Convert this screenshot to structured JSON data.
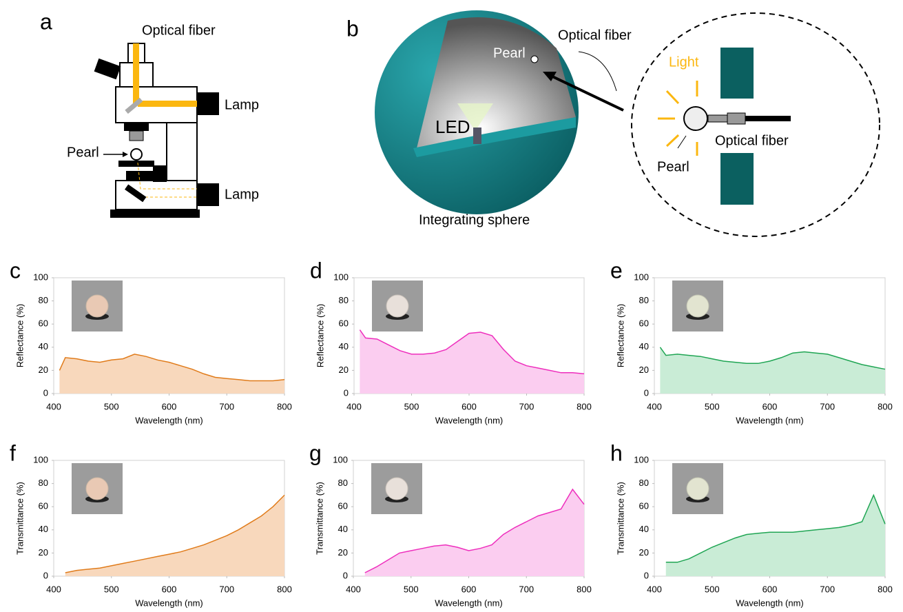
{
  "diagram_a": {
    "panel": "a",
    "labels": [
      "Optical fiber",
      "Lamp",
      "Pearl",
      "Lamp"
    ]
  },
  "diagram_b": {
    "panel": "b",
    "labels": [
      "Optical fiber",
      "Pearl",
      "LED",
      "Integrating sphere",
      "Light",
      "Optical fiber",
      "Pearl"
    ]
  },
  "chart_data": [
    {
      "type": "area",
      "panel": "c",
      "x_label": "Wavelength (nm)",
      "y_label": "Reflectance (%)",
      "color": "#e07b1a",
      "fill_color": "#f8d8bc",
      "xlim": [
        400,
        800
      ],
      "ylim": [
        0,
        100
      ],
      "xticks": [
        400,
        500,
        600,
        700,
        800
      ],
      "yticks": [
        0,
        20,
        40,
        60,
        80,
        100
      ],
      "x": [
        410,
        420,
        440,
        460,
        480,
        500,
        520,
        540,
        560,
        580,
        600,
        620,
        640,
        660,
        680,
        700,
        720,
        740,
        760,
        780,
        800
      ],
      "values": [
        20,
        31,
        30,
        28,
        27,
        29,
        30,
        34,
        32,
        29,
        27,
        24,
        21,
        17,
        14,
        13,
        12,
        11,
        11,
        11,
        12
      ]
    },
    {
      "type": "area",
      "panel": "d",
      "x_label": "Wavelength (nm)",
      "y_label": "Reflectance (%)",
      "color": "#ee2ebd",
      "fill_color": "#fbcdf0",
      "xlim": [
        400,
        800
      ],
      "ylim": [
        0,
        100
      ],
      "xticks": [
        400,
        500,
        600,
        700,
        800
      ],
      "yticks": [
        0,
        20,
        40,
        60,
        80,
        100
      ],
      "x": [
        410,
        420,
        440,
        460,
        480,
        500,
        520,
        540,
        560,
        580,
        600,
        620,
        640,
        660,
        680,
        700,
        720,
        740,
        760,
        780,
        800
      ],
      "values": [
        55,
        48,
        47,
        42,
        37,
        34,
        34,
        35,
        38,
        45,
        52,
        53,
        50,
        38,
        28,
        24,
        22,
        20,
        18,
        18,
        17
      ]
    },
    {
      "type": "area",
      "panel": "e",
      "x_label": "Wavelength (nm)",
      "y_label": "Reflectance (%)",
      "color": "#1fa553",
      "fill_color": "#c9ecd6",
      "xlim": [
        400,
        800
      ],
      "ylim": [
        0,
        100
      ],
      "xticks": [
        400,
        500,
        600,
        700,
        800
      ],
      "yticks": [
        0,
        20,
        40,
        60,
        80,
        100
      ],
      "x": [
        410,
        420,
        440,
        460,
        480,
        500,
        520,
        540,
        560,
        580,
        600,
        620,
        640,
        660,
        680,
        700,
        720,
        740,
        760,
        780,
        800
      ],
      "values": [
        40,
        33,
        34,
        33,
        32,
        30,
        28,
        27,
        26,
        26,
        28,
        31,
        35,
        36,
        35,
        34,
        31,
        28,
        25,
        23,
        21
      ]
    },
    {
      "type": "area",
      "panel": "f",
      "x_label": "Wavelength (nm)",
      "y_label": "Transmittance (%)",
      "color": "#e07b1a",
      "fill_color": "#f8d8bc",
      "xlim": [
        400,
        800
      ],
      "ylim": [
        0,
        100
      ],
      "xticks": [
        400,
        500,
        600,
        700,
        800
      ],
      "yticks": [
        0,
        20,
        40,
        60,
        80,
        100
      ],
      "x": [
        420,
        440,
        460,
        480,
        500,
        520,
        540,
        560,
        580,
        600,
        620,
        640,
        660,
        680,
        700,
        720,
        740,
        760,
        780,
        800
      ],
      "values": [
        3,
        5,
        6,
        7,
        9,
        11,
        13,
        15,
        17,
        19,
        21,
        24,
        27,
        31,
        35,
        40,
        46,
        52,
        60,
        70
      ]
    },
    {
      "type": "area",
      "panel": "g",
      "x_label": "Wavelength (nm)",
      "y_label": "Transmittance (%)",
      "color": "#ee2ebd",
      "fill_color": "#fbcdf0",
      "xlim": [
        400,
        800
      ],
      "ylim": [
        0,
        100
      ],
      "xticks": [
        400,
        500,
        600,
        700,
        800
      ],
      "yticks": [
        0,
        20,
        40,
        60,
        80,
        100
      ],
      "x": [
        420,
        440,
        460,
        480,
        500,
        520,
        540,
        560,
        580,
        600,
        620,
        640,
        660,
        680,
        700,
        720,
        740,
        760,
        780,
        800
      ],
      "values": [
        3,
        8,
        14,
        20,
        22,
        24,
        26,
        27,
        25,
        22,
        24,
        27,
        36,
        42,
        47,
        52,
        55,
        58,
        75,
        62
      ]
    },
    {
      "type": "area",
      "panel": "h",
      "x_label": "Wavelength (nm)",
      "y_label": "Transmittance (%)",
      "color": "#1fa553",
      "fill_color": "#c9ecd6",
      "xlim": [
        400,
        800
      ],
      "ylim": [
        0,
        100
      ],
      "xticks": [
        400,
        500,
        600,
        700,
        800
      ],
      "yticks": [
        0,
        20,
        40,
        60,
        80,
        100
      ],
      "x": [
        420,
        440,
        460,
        480,
        500,
        520,
        540,
        560,
        580,
        600,
        620,
        640,
        660,
        680,
        700,
        720,
        740,
        760,
        780,
        800
      ],
      "values": [
        12,
        12,
        15,
        20,
        25,
        29,
        33,
        36,
        37,
        38,
        38,
        38,
        39,
        40,
        41,
        42,
        44,
        47,
        70,
        45
      ]
    }
  ]
}
